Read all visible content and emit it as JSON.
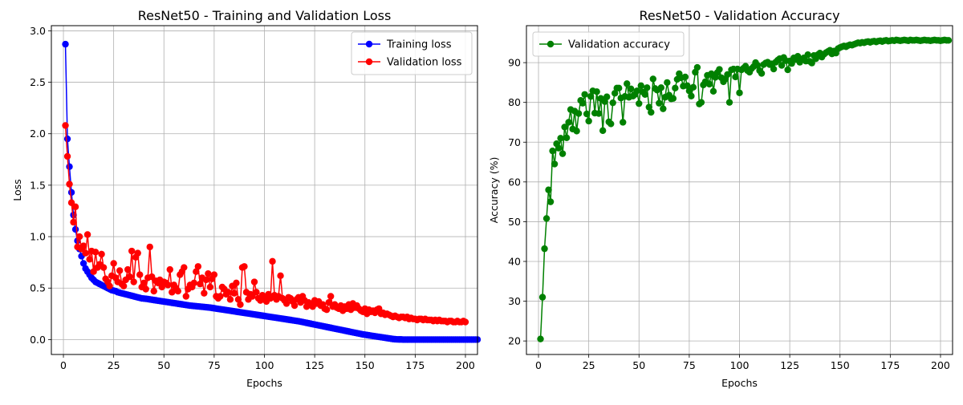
{
  "chart_data": [
    {
      "type": "line",
      "title": "ResNet50 - Training and Validation Loss",
      "xlabel": "Epochs",
      "ylabel": "Loss",
      "xlim": [
        -6,
        206
      ],
      "ylim": [
        -0.145,
        3.05
      ],
      "xticks": [
        0,
        25,
        50,
        75,
        100,
        125,
        150,
        175,
        200
      ],
      "yticks": [
        0.0,
        0.5,
        1.0,
        1.5,
        2.0,
        2.5,
        3.0
      ],
      "ytick_labels": [
        "0.0",
        "0.5",
        "1.0",
        "1.5",
        "2.0",
        "2.5",
        "3.0"
      ],
      "grid": true,
      "legend_loc": "top-right",
      "series": [
        {
          "name": "Training loss",
          "color": "#0000ff",
          "marker": "circle",
          "x_start": 1,
          "values": [
            2.87,
            1.95,
            1.68,
            1.43,
            1.21,
            1.07,
            0.96,
            0.88,
            0.81,
            0.74,
            0.69,
            0.66,
            0.63,
            0.6,
            0.58,
            0.56,
            0.55,
            0.54,
            0.53,
            0.52,
            0.51,
            0.5,
            0.49,
            0.48,
            0.475,
            0.47,
            0.46,
            0.455,
            0.45,
            0.445,
            0.44,
            0.435,
            0.43,
            0.425,
            0.42,
            0.415,
            0.41,
            0.405,
            0.4,
            0.398,
            0.396,
            0.393,
            0.39,
            0.387,
            0.384,
            0.381,
            0.378,
            0.375,
            0.372,
            0.369,
            0.366,
            0.363,
            0.36,
            0.357,
            0.354,
            0.351,
            0.348,
            0.345,
            0.342,
            0.339,
            0.336,
            0.333,
            0.33,
            0.328,
            0.326,
            0.324,
            0.322,
            0.32,
            0.318,
            0.316,
            0.314,
            0.312,
            0.31,
            0.307,
            0.304,
            0.301,
            0.298,
            0.295,
            0.292,
            0.289,
            0.286,
            0.283,
            0.28,
            0.277,
            0.274,
            0.271,
            0.268,
            0.265,
            0.262,
            0.259,
            0.256,
            0.253,
            0.25,
            0.247,
            0.244,
            0.241,
            0.238,
            0.235,
            0.232,
            0.229,
            0.226,
            0.223,
            0.22,
            0.217,
            0.214,
            0.211,
            0.208,
            0.205,
            0.202,
            0.199,
            0.196,
            0.193,
            0.19,
            0.187,
            0.184,
            0.181,
            0.178,
            0.174,
            0.17,
            0.166,
            0.162,
            0.158,
            0.154,
            0.15,
            0.146,
            0.142,
            0.138,
            0.134,
            0.13,
            0.126,
            0.122,
            0.118,
            0.114,
            0.11,
            0.106,
            0.102,
            0.098,
            0.094,
            0.09,
            0.086,
            0.082,
            0.078,
            0.074,
            0.07,
            0.066,
            0.062,
            0.058,
            0.054,
            0.05,
            0.047,
            0.044,
            0.041,
            0.038,
            0.035,
            0.032,
            0.029,
            0.026,
            0.023,
            0.02,
            0.017,
            0.014,
            0.011,
            0.008,
            0.005,
            0.003,
            0.002,
            0.001,
            0.001,
            0.0,
            0.0,
            0.0,
            0.0,
            0.0,
            0.0,
            0.0,
            0.0,
            0.0,
            0.0,
            0.0,
            0.0,
            0.0,
            0.0,
            0.0,
            0.0,
            0.0,
            0.0,
            0.0,
            0.0,
            0.0,
            0.0,
            0.0,
            0.0,
            0.0,
            0.0,
            0.0,
            0.0,
            0.0,
            0.0,
            0.0,
            0.0,
            0.0,
            0.0,
            0.0,
            0.0,
            0.0,
            0.0
          ]
        },
        {
          "name": "Validation loss",
          "color": "#ff0000",
          "marker": "circle",
          "x_start": 1,
          "values": [
            2.08,
            1.78,
            1.51,
            1.33,
            1.14,
            1.29,
            0.9,
            1.0,
            0.88,
            0.91,
            0.84,
            1.02,
            0.78,
            0.86,
            0.66,
            0.85,
            0.7,
            0.73,
            0.83,
            0.7,
            0.59,
            0.56,
            0.52,
            0.62,
            0.74,
            0.6,
            0.56,
            0.67,
            0.54,
            0.52,
            0.58,
            0.68,
            0.61,
            0.86,
            0.56,
            0.8,
            0.84,
            0.63,
            0.51,
            0.55,
            0.49,
            0.6,
            0.9,
            0.61,
            0.47,
            0.57,
            0.55,
            0.58,
            0.51,
            0.56,
            0.55,
            0.53,
            0.68,
            0.46,
            0.53,
            0.5,
            0.47,
            0.63,
            0.66,
            0.7,
            0.42,
            0.49,
            0.53,
            0.51,
            0.55,
            0.66,
            0.71,
            0.54,
            0.6,
            0.45,
            0.58,
            0.64,
            0.51,
            0.59,
            0.63,
            0.42,
            0.4,
            0.42,
            0.51,
            0.49,
            0.44,
            0.46,
            0.39,
            0.52,
            0.45,
            0.55,
            0.39,
            0.34,
            0.7,
            0.71,
            0.46,
            0.39,
            0.44,
            0.42,
            0.56,
            0.46,
            0.4,
            0.38,
            0.43,
            0.41,
            0.37,
            0.44,
            0.4,
            0.76,
            0.43,
            0.39,
            0.42,
            0.62,
            0.4,
            0.38,
            0.35,
            0.41,
            0.4,
            0.37,
            0.33,
            0.39,
            0.41,
            0.36,
            0.42,
            0.38,
            0.32,
            0.36,
            0.34,
            0.32,
            0.38,
            0.35,
            0.37,
            0.33,
            0.34,
            0.3,
            0.29,
            0.36,
            0.42,
            0.32,
            0.34,
            0.31,
            0.3,
            0.33,
            0.28,
            0.32,
            0.3,
            0.34,
            0.29,
            0.35,
            0.31,
            0.33,
            0.3,
            0.28,
            0.27,
            0.3,
            0.25,
            0.29,
            0.27,
            0.28,
            0.26,
            0.29,
            0.3,
            0.25,
            0.26,
            0.24,
            0.25,
            0.24,
            0.23,
            0.22,
            0.23,
            0.22,
            0.21,
            0.22,
            0.22,
            0.21,
            0.22,
            0.2,
            0.21,
            0.2,
            0.2,
            0.19,
            0.2,
            0.2,
            0.19,
            0.2,
            0.19,
            0.19,
            0.19,
            0.18,
            0.19,
            0.18,
            0.19,
            0.18,
            0.18,
            0.18,
            0.17,
            0.18,
            0.18,
            0.17,
            0.17,
            0.18,
            0.17,
            0.17,
            0.18,
            0.17
          ]
        }
      ]
    },
    {
      "type": "line",
      "title": "ResNet50 - Validation Accuracy",
      "xlabel": "Epochs",
      "ylabel": "Accuracy (%)",
      "xlim": [
        -6,
        206
      ],
      "ylim": [
        16.6,
        99.3
      ],
      "xticks": [
        0,
        25,
        50,
        75,
        100,
        125,
        150,
        175,
        200
      ],
      "yticks": [
        20,
        30,
        40,
        50,
        60,
        70,
        80,
        90
      ],
      "ytick_labels": [
        "20",
        "30",
        "40",
        "50",
        "60",
        "70",
        "80",
        "90"
      ],
      "grid": true,
      "legend_loc": "top-left",
      "series": [
        {
          "name": "Validation accuracy",
          "color": "#008000",
          "marker": "circle",
          "x_start": 1,
          "values": [
            20.5,
            31.0,
            43.2,
            50.8,
            58.0,
            55.0,
            67.8,
            64.5,
            69.6,
            68.5,
            71.0,
            67.1,
            73.8,
            71.1,
            75.0,
            78.2,
            73.3,
            77.8,
            72.8,
            77.2,
            80.5,
            79.8,
            82.0,
            77.1,
            75.3,
            81.5,
            82.9,
            77.3,
            82.7,
            77.2,
            81.0,
            72.9,
            80.2,
            81.4,
            75.1,
            74.6,
            79.9,
            82.3,
            83.6,
            83.6,
            81.1,
            75.0,
            81.5,
            84.7,
            81.3,
            83.4,
            81.6,
            82.0,
            82.9,
            79.7,
            84.2,
            82.6,
            82.0,
            83.7,
            78.8,
            77.5,
            85.9,
            83.5,
            83.1,
            79.8,
            83.7,
            78.4,
            81.3,
            85.0,
            81.8,
            80.9,
            81.0,
            83.6,
            85.8,
            87.2,
            86.2,
            84.1,
            86.4,
            84.2,
            82.9,
            81.6,
            83.8,
            87.6,
            88.8,
            79.6,
            80.0,
            84.4,
            85.2,
            86.8,
            84.6,
            87.2,
            82.8,
            86.3,
            87.5,
            88.3,
            86.2,
            85.2,
            85.9,
            87.0,
            80.0,
            88.2,
            88.4,
            86.4,
            88.4,
            82.4,
            88.2,
            88.6,
            89.1,
            88.0,
            87.6,
            88.5,
            89.0,
            90.0,
            89.3,
            88.0,
            87.3,
            89.5,
            89.9,
            90.1,
            89.5,
            89.7,
            88.4,
            90.1,
            90.6,
            91.0,
            89.3,
            91.3,
            90.5,
            88.2,
            90.4,
            89.8,
            91.2,
            90.8,
            91.6,
            90.1,
            90.9,
            91.2,
            90.4,
            92.0,
            90.3,
            89.9,
            91.8,
            91.0,
            92.0,
            92.4,
            91.4,
            92.1,
            92.5,
            92.8,
            93.1,
            92.2,
            92.9,
            92.4,
            93.5,
            93.8,
            94.0,
            94.2,
            94.0,
            94.3,
            94.5,
            94.4,
            94.6,
            94.8,
            95.0,
            94.9,
            95.1,
            95.0,
            95.2,
            95.3,
            95.1,
            95.3,
            95.4,
            95.2,
            95.4,
            95.5,
            95.3,
            95.5,
            95.6,
            95.4,
            95.5,
            95.6,
            95.5,
            95.7,
            95.6,
            95.5,
            95.6,
            95.7,
            95.6,
            95.5,
            95.7,
            95.6,
            95.6,
            95.7,
            95.6,
            95.5,
            95.6,
            95.7,
            95.6,
            95.6,
            95.5,
            95.6,
            95.7,
            95.6,
            95.6,
            95.5,
            95.6,
            95.7,
            95.6,
            95.6
          ]
        }
      ]
    }
  ]
}
